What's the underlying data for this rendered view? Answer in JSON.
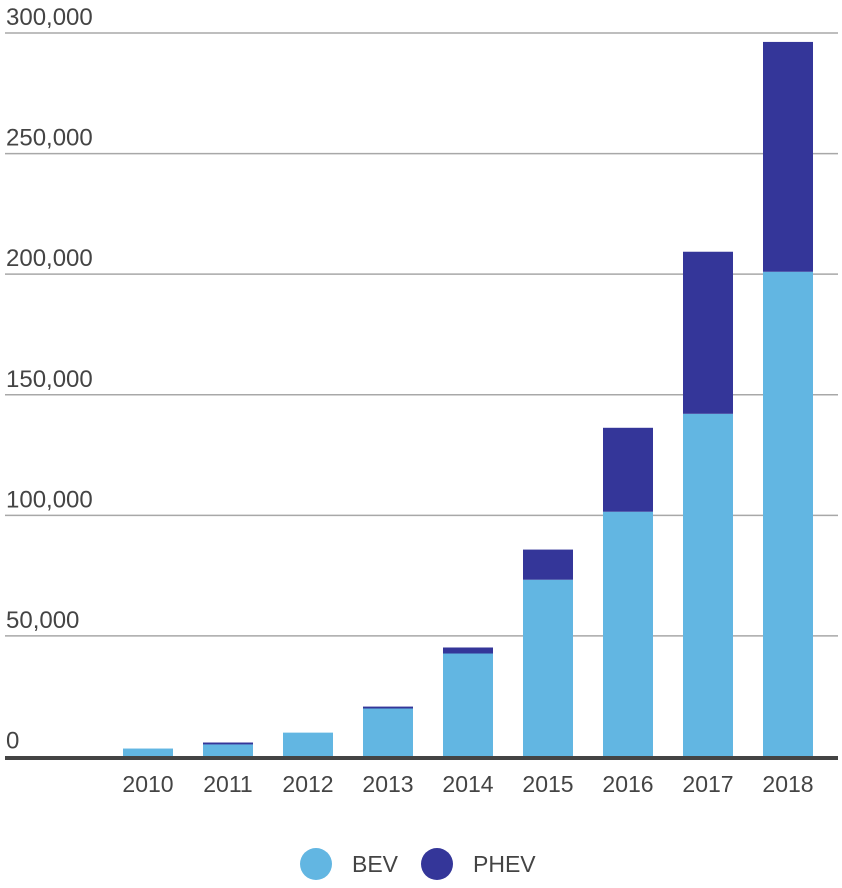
{
  "chart_data": {
    "type": "bar",
    "stacked": true,
    "categories": [
      "2010",
      "2011",
      "2012",
      "2013",
      "2014",
      "2015",
      "2016",
      "2017",
      "2018"
    ],
    "series": [
      {
        "name": "BEV",
        "color": "#62b6e2",
        "values": [
          3300,
          5000,
          9900,
          19900,
          42700,
          73300,
          101500,
          142100,
          201000
        ]
      },
      {
        "name": "PHEV",
        "color": "#343699",
        "values": [
          0,
          800,
          0,
          800,
          2500,
          12500,
          34800,
          67200,
          95300
        ]
      }
    ],
    "ylim": [
      0,
      300000
    ],
    "yticks": [
      0,
      50000,
      100000,
      150000,
      200000,
      250000,
      300000
    ],
    "ytick_labels": [
      "0",
      "50,000",
      "100,000",
      "150,000",
      "200,000",
      "250,000",
      "300,000"
    ],
    "grid": true,
    "legend": "bottom-center",
    "title": "",
    "xlabel": "",
    "ylabel": ""
  }
}
